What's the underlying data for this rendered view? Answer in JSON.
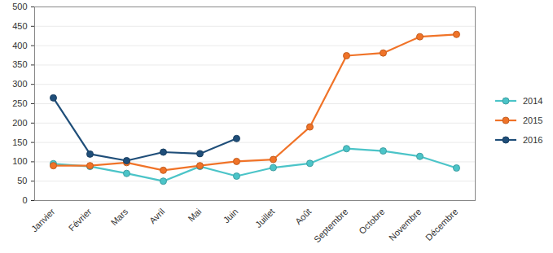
{
  "chart_data": {
    "type": "line",
    "categories": [
      "Janvier",
      "Février",
      "Mars",
      "Avril",
      "Mai",
      "Juin",
      "Juillet",
      "Août",
      "Septembre",
      "Octobre",
      "Novembre",
      "Décembre"
    ],
    "series": [
      {
        "name": "2014",
        "color": "#4bc4c8",
        "marker": "circle",
        "values": [
          95,
          88,
          70,
          50,
          88,
          63,
          85,
          96,
          134,
          128,
          114,
          84
        ]
      },
      {
        "name": "2015",
        "color": "#f07328",
        "marker": "circle",
        "values": [
          90,
          90,
          98,
          78,
          90,
          101,
          106,
          190,
          374,
          381,
          423,
          429
        ]
      },
      {
        "name": "2016",
        "color": "#1f4e79",
        "marker": "circle",
        "values": [
          265,
          120,
          103,
          125,
          121,
          160,
          null,
          null,
          null,
          null,
          null,
          null
        ]
      }
    ],
    "ylim": [
      0,
      500
    ],
    "yticks": [
      0,
      50,
      100,
      150,
      200,
      250,
      300,
      350,
      400,
      450,
      500
    ],
    "grid": true,
    "legend": "right"
  }
}
